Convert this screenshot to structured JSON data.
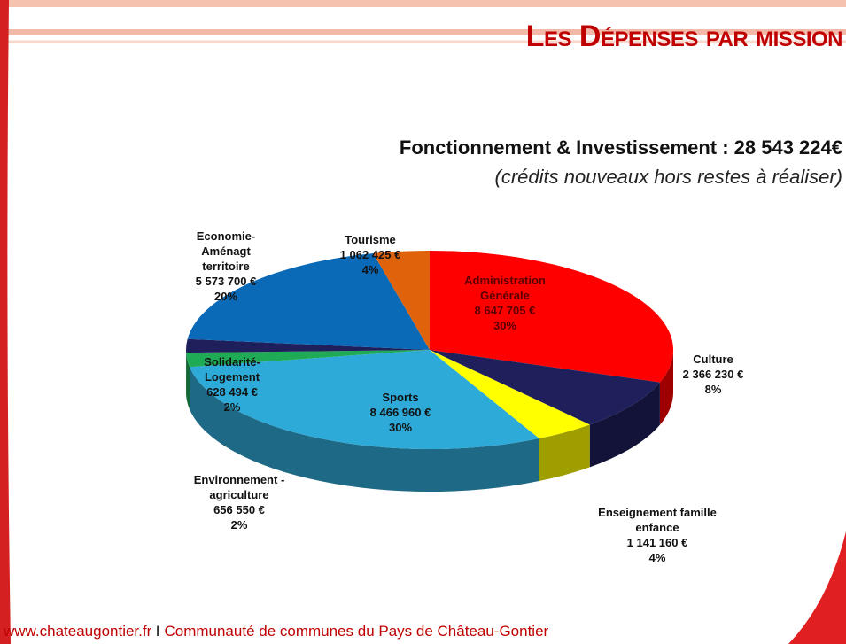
{
  "header": {
    "title": "Les Dépenses par mission"
  },
  "chart_data": {
    "type": "pie",
    "title": "Fonctionnement & Investissement :  28 543 224€",
    "subtitle": "(crédits nouveaux hors restes à réaliser)",
    "categories": [
      "Administration Générale",
      "Culture",
      "Enseignement famille enfance",
      "Sports",
      "Environnement - agriculture",
      "Solidarité-Logement",
      "Economie-Aménagt territoire",
      "Tourisme"
    ],
    "values": [
      8647705,
      2366230,
      1141160,
      8466960,
      656550,
      628494,
      5573700,
      1062425
    ],
    "value_labels": [
      "8 647 705 €",
      "2 366 230 €",
      "1 141 160 €",
      "8 466 960 €",
      "656 550 €",
      "628 494 €",
      "5 573 700 €",
      "1 062 425 €"
    ],
    "percent_labels": [
      "30%",
      "8%",
      "4%",
      "30%",
      "2%",
      "2%",
      "20%",
      "4%"
    ],
    "colors": [
      "#ff0000",
      "#1f1f5c",
      "#ffff00",
      "#2eaad8",
      "#1faa55",
      "#1f1f5c",
      "#0a6ab8",
      "#e0620a"
    ]
  },
  "footer": {
    "site": "www.chateaugontier.fr",
    "org": "Communauté de communes du Pays de Château-Gontier"
  }
}
